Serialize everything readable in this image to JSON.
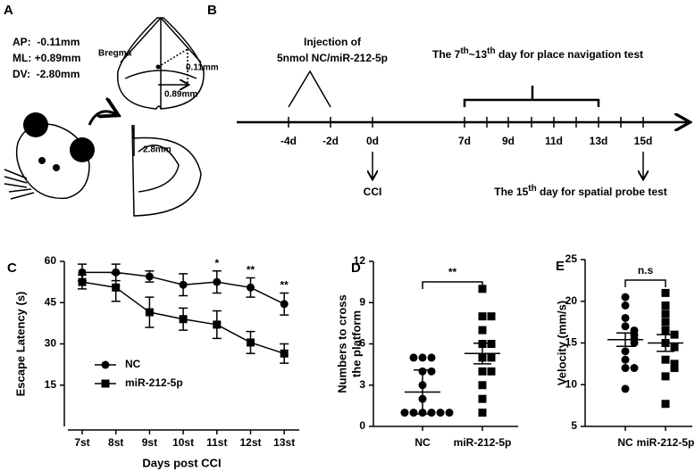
{
  "panel_a": {
    "label": "A",
    "coordinates": [
      "AP:  -0.11mm",
      "ML: +0.89mm",
      "DV:  -2.80mm"
    ],
    "bregma": "Bregma",
    "ap_offset": "0.11mm",
    "ml_offset": "0.89mm",
    "dv_depth": "2.8mm"
  },
  "panel_b": {
    "label": "B",
    "injection": [
      "Injection of",
      "5nmol NC/miR-212-5p"
    ],
    "navigation_test": [
      "The 7",
      "th",
      "~13",
      "th",
      " day for place navigation test"
    ],
    "days": [
      "-4d",
      "-2d",
      "0d",
      "7d",
      "9d",
      "11d",
      "13d",
      "15d"
    ],
    "cci": "CCI",
    "probe_test": [
      "The 15",
      "th",
      " day for spatial probe test"
    ]
  },
  "chart_data": [
    {
      "panel_label": "C",
      "type": "line",
      "categories": [
        "7st",
        "8st",
        "9st",
        "10st",
        "11st",
        "12st",
        "13st"
      ],
      "xlabel": "Days post CCI",
      "ylabel": "Escape Latency (s)",
      "ylim": [
        0,
        60
      ],
      "yticks": [
        15,
        30,
        45,
        60
      ],
      "series": [
        {
          "name": "NC",
          "color": "#000000",
          "marker": "circle",
          "values": [
            56,
            56,
            54.5,
            51.5,
            52.5,
            50.5,
            44.5
          ],
          "errors": [
            3,
            3,
            2,
            4,
            4,
            3.5,
            4
          ]
        },
        {
          "name": "miR-212-5p",
          "color": "#000000",
          "marker": "square",
          "values": [
            52.5,
            50.5,
            41.5,
            39,
            37,
            30.5,
            26.5
          ],
          "errors": [
            2.5,
            5,
            5.5,
            4,
            5,
            4,
            3.5
          ]
        }
      ],
      "annotations": [
        null,
        null,
        null,
        null,
        "*",
        "**",
        "**"
      ]
    },
    {
      "panel_label": "D",
      "type": "dot",
      "categories": [
        "NC",
        "miR-212-5p"
      ],
      "ylabel": [
        "Numbers to cross",
        "the platform"
      ],
      "ylim": [
        0,
        12
      ],
      "yticks": [
        0,
        3,
        6,
        9,
        12
      ],
      "markers": [
        "circle",
        "square"
      ],
      "color": "#000000",
      "points": [
        [
          5,
          5,
          5,
          4,
          4,
          3,
          2,
          1,
          1,
          1,
          1,
          1,
          1
        ],
        [
          10,
          8,
          8,
          7,
          6,
          6,
          5,
          5,
          4,
          4,
          3,
          2,
          1
        ]
      ],
      "means": [
        2.5,
        5.3
      ],
      "errors": [
        1.6,
        0.75
      ],
      "significance": "**"
    },
    {
      "panel_label": "E",
      "type": "dot",
      "categories": [
        "NC",
        "miR-212-5p"
      ],
      "ylabel": [
        "Velocity (mm/s)"
      ],
      "ylim": [
        5,
        25
      ],
      "yticks": [
        5,
        10,
        15,
        20,
        25
      ],
      "markers": [
        "circle",
        "square"
      ],
      "color": "#000000",
      "points": [
        [
          20.5,
          19.5,
          18,
          17,
          16.5,
          16,
          15.5,
          15,
          14,
          13,
          12,
          12,
          9.5
        ],
        [
          21,
          19.5,
          18.5,
          17.5,
          16.5,
          16,
          15,
          14.5,
          13,
          12.5,
          12,
          11,
          7.7
        ]
      ],
      "means": [
        15.4,
        15
      ],
      "errors": [
        0.8,
        1
      ],
      "significance": "n.s"
    }
  ]
}
